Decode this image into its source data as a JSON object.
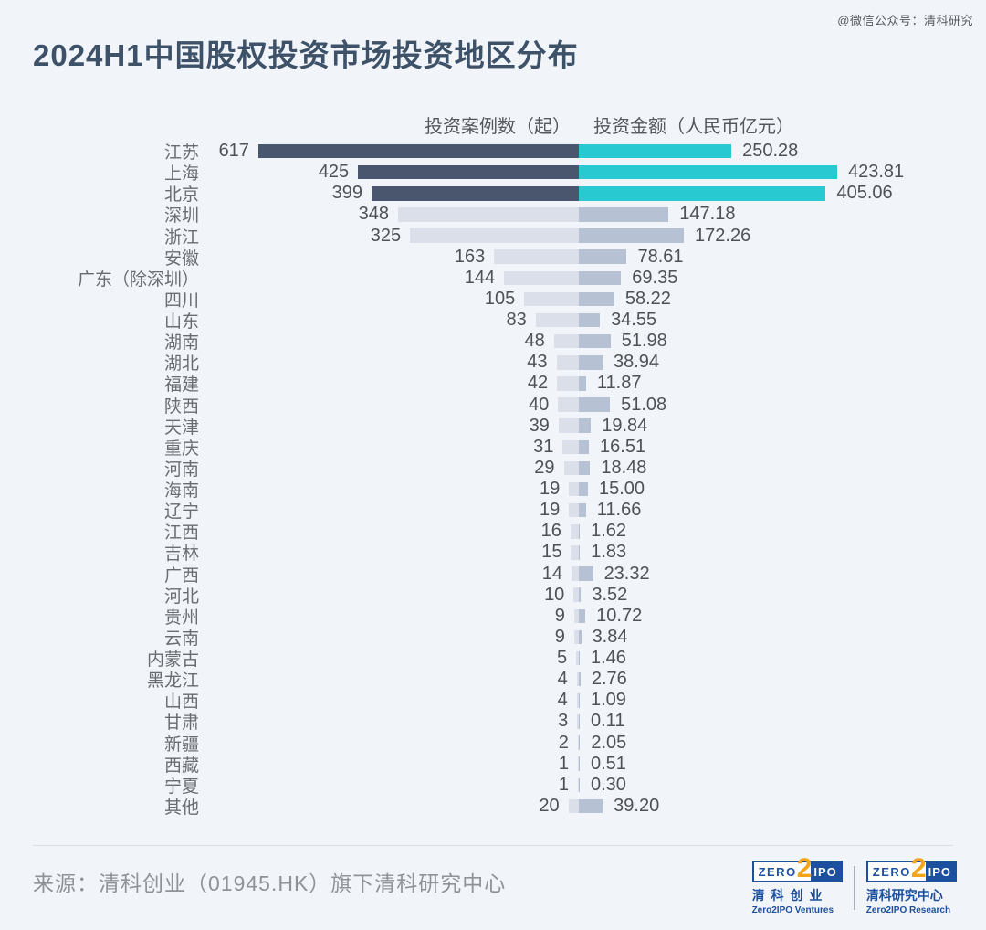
{
  "title": "2024H1中国股权投资市场投资地区分布",
  "watermark": "@微信公众号：清科研究",
  "chart_data": {
    "type": "bar",
    "orientation": "horizontal-bidirectional-tornado",
    "title": "2024H1中国股权投资市场投资地区分布",
    "left_header": "投资案例数（起）",
    "right_header": "投资金额（人民币亿元）",
    "highlight_top_n": 3,
    "categories": [
      "江苏",
      "上海",
      "北京",
      "深圳",
      "浙江",
      "安徽",
      "广东（除深圳）",
      "四川",
      "山东",
      "湖南",
      "湖北",
      "福建",
      "陕西",
      "天津",
      "重庆",
      "河南",
      "海南",
      "辽宁",
      "江西",
      "吉林",
      "广西",
      "河北",
      "贵州",
      "云南",
      "内蒙古",
      "黑龙江",
      "山西",
      "甘肃",
      "新疆",
      "西藏",
      "宁夏",
      "其他"
    ],
    "series": [
      {
        "name": "投资案例数（起）",
        "values": [
          617,
          425,
          399,
          348,
          325,
          163,
          144,
          105,
          83,
          48,
          43,
          42,
          40,
          39,
          31,
          29,
          19,
          19,
          16,
          15,
          14,
          10,
          9,
          9,
          5,
          4,
          4,
          3,
          2,
          1,
          1,
          20
        ]
      },
      {
        "name": "投资金额（人民币亿元）",
        "values": [
          250.28,
          423.81,
          405.06,
          147.18,
          172.26,
          78.61,
          69.35,
          58.22,
          34.55,
          51.98,
          38.94,
          11.87,
          51.08,
          19.84,
          16.51,
          18.48,
          15.0,
          11.66,
          1.62,
          1.83,
          23.32,
          3.52,
          10.72,
          3.84,
          1.46,
          2.76,
          1.09,
          0.11,
          2.05,
          0.51,
          0.3,
          39.2
        ]
      }
    ],
    "colors": {
      "case_bar_top": "#49566E",
      "amount_bar_top": "#28C9D0",
      "case_bar": "#DBDFE9",
      "amount_bar": "#B7C1D4",
      "background": "#F1F4F8",
      "title_text": "#3D5269"
    },
    "legend_position": "top-center",
    "grid": false
  },
  "footer": {
    "source": "来源：清科创业（01945.HK）旗下清科研究中心",
    "logos": [
      {
        "box_zero": "ZERO",
        "box_two": "2",
        "box_ipo": "IPO",
        "cn": "清科创业",
        "en": "Zero2IPO Ventures"
      },
      {
        "box_zero": "ZERO",
        "box_two": "2",
        "box_ipo": "IPO",
        "cn": "清科研究中心",
        "en": "Zero2IPO Research"
      }
    ]
  }
}
